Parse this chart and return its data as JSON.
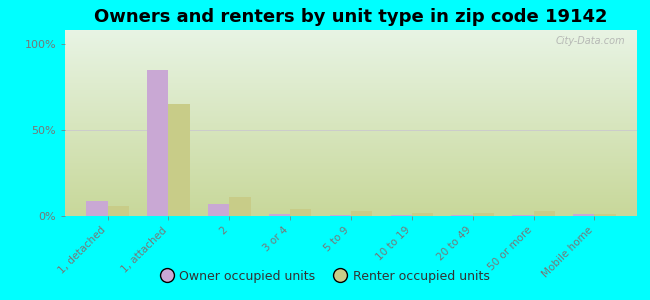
{
  "title": "Owners and renters by unit type in zip code 19142",
  "categories": [
    "1, detached",
    "1, attached",
    "2",
    "3 or 4",
    "5 to 9",
    "10 to 19",
    "20 to 49",
    "50 or more",
    "Mobile home"
  ],
  "owner_values": [
    9,
    85,
    7,
    1,
    0.5,
    0.5,
    0.5,
    0.5,
    1
  ],
  "renter_values": [
    6,
    65,
    11,
    4,
    3,
    2,
    2,
    3,
    1
  ],
  "owner_color": "#C9A8D4",
  "renter_color": "#C8CC88",
  "background_grad_bottom": "#C8D89A",
  "background_grad_top": "#E8F4E4",
  "outer_background": "#00FFFF",
  "ylabel_ticks": [
    0,
    50,
    100
  ],
  "ylabel_labels": [
    "0%",
    "50%",
    "100%"
  ],
  "ylim": [
    0,
    108
  ],
  "watermark": "City-Data.com",
  "legend_owner": "Owner occupied units",
  "legend_renter": "Renter occupied units",
  "title_fontsize": 13,
  "bar_width": 0.35,
  "tick_label_color": "#777777",
  "grid_color": "#CCCCCC"
}
